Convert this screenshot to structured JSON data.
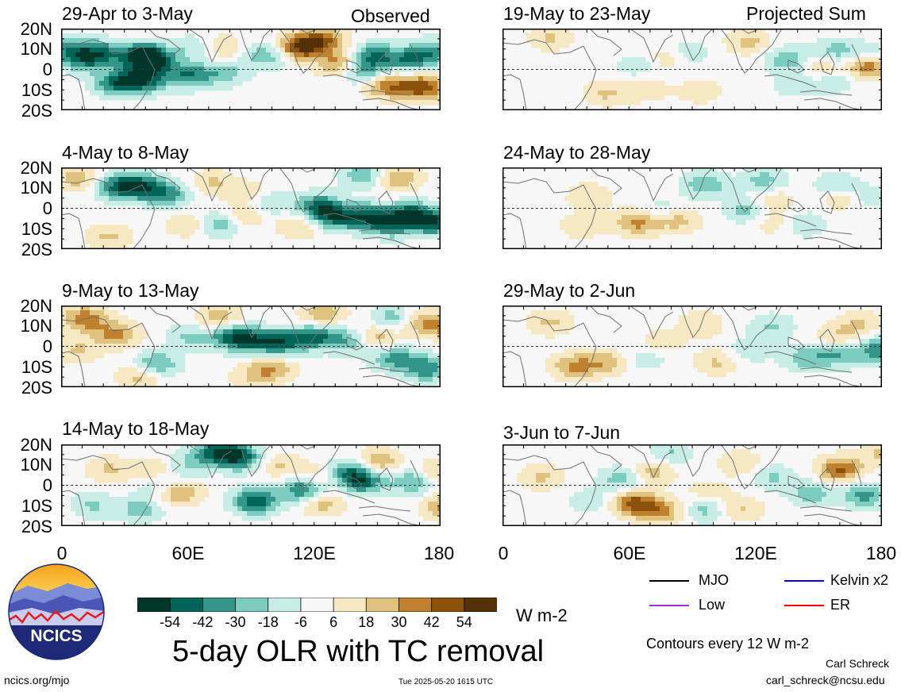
{
  "headers": {
    "observed": "Observed",
    "projected": "Projected Sum"
  },
  "panels": [
    {
      "id": "p1",
      "col": 0,
      "row": 0,
      "label": "29-Apr to 3-May"
    },
    {
      "id": "p2",
      "col": 0,
      "row": 1,
      "label": "4-May to 8-May"
    },
    {
      "id": "p3",
      "col": 0,
      "row": 2,
      "label": "9-May to 13-May"
    },
    {
      "id": "p4",
      "col": 0,
      "row": 3,
      "label": "14-May to 18-May"
    },
    {
      "id": "p5",
      "col": 1,
      "row": 0,
      "label": "19-May to 23-May"
    },
    {
      "id": "p6",
      "col": 1,
      "row": 1,
      "label": "24-May to 28-May"
    },
    {
      "id": "p7",
      "col": 1,
      "row": 2,
      "label": "29-May to 2-Jun"
    },
    {
      "id": "p8",
      "col": 1,
      "row": 3,
      "label": "3-Jun to 7-Jun"
    }
  ],
  "lat_labels": [
    "20N",
    "10N",
    "0",
    "10S",
    "20S"
  ],
  "lon_labels": [
    "0",
    "60E",
    "120E",
    "180"
  ],
  "colorbar": {
    "colors": [
      "#00372a",
      "#006559",
      "#34958a",
      "#7ccdc0",
      "#c8ece6",
      "#f7f7f7",
      "#f6e8c3",
      "#dfc27d",
      "#bf812d",
      "#8c510a",
      "#543005"
    ],
    "tick_labels": [
      "-54",
      "-42",
      "-30",
      "-18",
      "-6",
      "6",
      "18",
      "30",
      "42",
      "54"
    ],
    "units": "W m-2"
  },
  "main_title": "5-day OLR with TC removal",
  "legend": {
    "items": [
      {
        "label": "MJO",
        "color": "#000000"
      },
      {
        "label": "Kelvin x2",
        "color": "#0000ff"
      },
      {
        "label": "Low",
        "color": "#9a2fd6"
      },
      {
        "label": "ER",
        "color": "#ff0000"
      }
    ],
    "contours_note": "Contours every 12 W m-2"
  },
  "logo_text": "NCICS",
  "footer": {
    "url": "ncics.org/mjo",
    "timestamp": "Tue 2025-05-20 1615 UTC",
    "author": "Carl Schreck",
    "email": "carl_schreck@ncsu.edu"
  },
  "panel_fields": {
    "p1": [
      [
        115,
        25,
        -50
      ],
      [
        100,
        35,
        -45
      ],
      [
        50,
        40,
        -40
      ],
      [
        105,
        -25,
        -50
      ],
      [
        70,
        -35,
        -45
      ],
      [
        160,
        -15,
        -40
      ],
      [
        10,
        50,
        -35
      ],
      [
        300,
        55,
        55
      ],
      [
        330,
        75,
        40
      ],
      [
        410,
        -40,
        40
      ],
      [
        260,
        35,
        -30
      ],
      [
        395,
        35,
        -40
      ],
      [
        380,
        -5,
        -35
      ],
      [
        440,
        25,
        -38
      ],
      [
        470,
        45,
        -30
      ],
      [
        170,
        55,
        -20
      ],
      [
        205,
        -10,
        -25
      ],
      [
        28,
        20,
        -25
      ],
      [
        455,
        -45,
        50
      ],
      [
        350,
        15,
        35
      ],
      [
        200,
        55,
        22
      ]
    ],
    "p2": [
      [
        70,
        55,
        -40
      ],
      [
        100,
        55,
        -45
      ],
      [
        135,
        35,
        -35
      ],
      [
        200,
        -40,
        -30
      ],
      [
        260,
        15,
        -25
      ],
      [
        325,
        5,
        -45
      ],
      [
        345,
        -25,
        -40
      ],
      [
        385,
        -20,
        -45
      ],
      [
        440,
        -15,
        -45
      ],
      [
        470,
        -35,
        -50
      ],
      [
        415,
        -40,
        -40
      ],
      [
        20,
        75,
        25
      ],
      [
        190,
        65,
        20
      ],
      [
        240,
        35,
        20
      ],
      [
        380,
        85,
        -30
      ],
      [
        425,
        75,
        30
      ],
      [
        230,
        -20,
        20
      ],
      [
        300,
        -45,
        20
      ],
      [
        60,
        -70,
        20
      ],
      [
        160,
        -40,
        20
      ]
    ],
    "p3": [
      [
        30,
        70,
        40
      ],
      [
        70,
        30,
        35
      ],
      [
        120,
        -45,
        -35
      ],
      [
        160,
        25,
        -20
      ],
      [
        210,
        30,
        -35
      ],
      [
        235,
        15,
        -45
      ],
      [
        275,
        10,
        -50
      ],
      [
        320,
        25,
        -45
      ],
      [
        365,
        15,
        -30
      ],
      [
        420,
        -30,
        -35
      ],
      [
        460,
        -55,
        -40
      ],
      [
        420,
        70,
        -30
      ],
      [
        450,
        60,
        30
      ],
      [
        490,
        50,
        35
      ],
      [
        200,
        70,
        30
      ],
      [
        330,
        80,
        28
      ],
      [
        395,
        25,
        30
      ],
      [
        100,
        -75,
        25
      ],
      [
        265,
        -55,
        30
      ],
      [
        240,
        -80,
        15
      ],
      [
        20,
        -10,
        20
      ]
    ],
    "p4": [
      [
        195,
        85,
        -45
      ],
      [
        225,
        70,
        -50
      ],
      [
        245,
        -40,
        -55
      ],
      [
        305,
        -10,
        -45
      ],
      [
        360,
        35,
        -35
      ],
      [
        380,
        10,
        -45
      ],
      [
        445,
        10,
        -35
      ],
      [
        115,
        35,
        25
      ],
      [
        150,
        -20,
        30
      ],
      [
        60,
        40,
        20
      ],
      [
        325,
        25,
        20
      ],
      [
        400,
        60,
        30
      ],
      [
        470,
        30,
        25
      ],
      [
        275,
        50,
        20
      ],
      [
        485,
        -55,
        35
      ],
      [
        40,
        -50,
        -20
      ],
      [
        160,
        50,
        -20
      ],
      [
        100,
        -60,
        -25
      ],
      [
        120,
        10,
        -20
      ],
      [
        330,
        -45,
        25
      ]
    ],
    "p5": [
      [
        360,
        25,
        -30
      ],
      [
        420,
        45,
        -25
      ],
      [
        460,
        35,
        -20
      ],
      [
        230,
        40,
        -20
      ],
      [
        170,
        10,
        -15
      ],
      [
        460,
        10,
        45
      ],
      [
        310,
        70,
        22
      ],
      [
        210,
        30,
        20
      ],
      [
        400,
        10,
        20
      ],
      [
        60,
        80,
        20
      ],
      [
        180,
        -50,
        15
      ],
      [
        130,
        -60,
        20
      ],
      [
        250,
        -55,
        15
      ],
      [
        370,
        -40,
        -15
      ],
      [
        420,
        -30,
        -15
      ]
    ],
    "p6": [
      [
        255,
        60,
        -30
      ],
      [
        330,
        70,
        -25
      ],
      [
        420,
        55,
        -22
      ],
      [
        450,
        30,
        -20
      ],
      [
        310,
        -5,
        -25
      ],
      [
        200,
        -5,
        -15
      ],
      [
        430,
        30,
        30
      ],
      [
        170,
        -35,
        35
      ],
      [
        100,
        -45,
        15
      ],
      [
        220,
        -30,
        25
      ],
      [
        340,
        20,
        18
      ],
      [
        110,
        30,
        18
      ],
      [
        380,
        -40,
        -18
      ],
      [
        340,
        -35,
        15
      ]
    ],
    "p7": [
      [
        90,
        -50,
        32
      ],
      [
        130,
        -40,
        25
      ],
      [
        60,
        60,
        20
      ],
      [
        250,
        55,
        18
      ],
      [
        180,
        -30,
        -15
      ],
      [
        200,
        10,
        15
      ],
      [
        310,
        -10,
        -15
      ],
      [
        380,
        -30,
        -25
      ],
      [
        420,
        -20,
        -30
      ],
      [
        470,
        -15,
        -30
      ],
      [
        340,
        50,
        -20
      ],
      [
        450,
        55,
        20
      ],
      [
        420,
        20,
        20
      ],
      [
        270,
        -40,
        20
      ],
      [
        490,
        10,
        -20
      ]
    ],
    "p8": [
      [
        165,
        -45,
        45
      ],
      [
        200,
        -65,
        35
      ],
      [
        425,
        40,
        45
      ],
      [
        390,
        -20,
        -25
      ],
      [
        455,
        -25,
        -35
      ],
      [
        255,
        -60,
        -25
      ],
      [
        190,
        35,
        25
      ],
      [
        150,
        15,
        -25
      ],
      [
        110,
        -40,
        -15
      ],
      [
        50,
        20,
        20
      ],
      [
        210,
        80,
        -20
      ],
      [
        300,
        55,
        18
      ],
      [
        340,
        20,
        -20
      ],
      [
        260,
        -20,
        15
      ],
      [
        480,
        80,
        20
      ],
      [
        300,
        -60,
        20
      ]
    ]
  }
}
